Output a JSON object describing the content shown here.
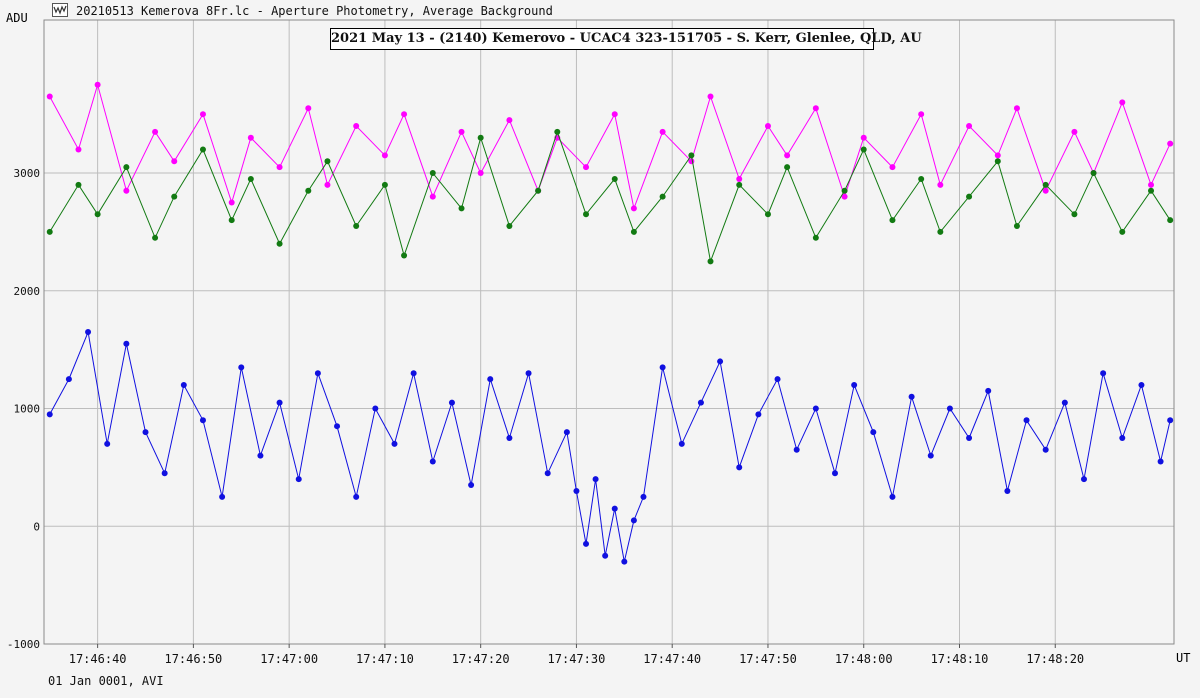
{
  "window": {
    "title": "20210513 Kemerova 8Fr.lc - Aperture Photometry, Average Background",
    "icon": "lightcurve-app-icon"
  },
  "footer": {
    "label": "01 Jan 0001, AVI"
  },
  "chart_data": {
    "type": "line",
    "title": "2021 May 13 - (2140) Kemerovo - UCAC4 323-151705 - S. Kerr, Glenlee, QLD, AU",
    "ylabel": "ADU",
    "xlabel": "UT",
    "ylim": [
      -1000,
      4300
    ],
    "xlim": [
      "17:46:34.4",
      "17:48:32.4"
    ],
    "yticks": [
      -1000,
      0,
      1000,
      2000,
      3000
    ],
    "ytick_labels": [
      "-1000",
      "0",
      "1000",
      "2000",
      "3000"
    ],
    "xticks": [
      "17:46:40",
      "17:46:50",
      "17:47:00",
      "17:47:10",
      "17:47:20",
      "17:47:30",
      "17:47:40",
      "17:47:50",
      "17:48:00",
      "17:48:10",
      "17:48:20"
    ],
    "grid": true,
    "colors": {
      "target": "#1010e0",
      "comp1": "#ff00ff",
      "comp2": "#127a12",
      "grid": "#bdbdbd"
    },
    "series": [
      {
        "key": "comp1",
        "color": "#ff00ff",
        "x": [
          "17:46:35",
          "17:46:38",
          "17:46:40",
          "17:46:43",
          "17:46:46",
          "17:46:48",
          "17:46:51",
          "17:46:54",
          "17:46:56",
          "17:46:59",
          "17:47:02",
          "17:47:04",
          "17:47:07",
          "17:47:10",
          "17:47:12",
          "17:47:15",
          "17:47:18",
          "17:47:20",
          "17:47:23",
          "17:47:26",
          "17:47:28",
          "17:47:31",
          "17:47:34",
          "17:47:36",
          "17:47:39",
          "17:47:42",
          "17:47:44",
          "17:47:47",
          "17:47:50",
          "17:47:52",
          "17:47:55",
          "17:47:58",
          "17:48:00",
          "17:48:03",
          "17:48:06",
          "17:48:08",
          "17:48:11",
          "17:48:14",
          "17:48:16",
          "17:48:19",
          "17:48:22",
          "17:48:24",
          "17:48:27",
          "17:48:30",
          "17:48:32"
        ],
        "y": [
          3650,
          3200,
          3750,
          2850,
          3350,
          3100,
          3500,
          2750,
          3300,
          3050,
          3550,
          2900,
          3400,
          3150,
          3500,
          2800,
          3350,
          3000,
          3450,
          2850,
          3300,
          3050,
          3500,
          2700,
          3350,
          3100,
          3650,
          2950,
          3400,
          3150,
          3550,
          2800,
          3300,
          3050,
          3500,
          2900,
          3400,
          3150,
          3550,
          2850,
          3350,
          3000,
          3600,
          2900,
          3250
        ]
      },
      {
        "key": "comp2",
        "color": "#127a12",
        "x": [
          "17:46:35",
          "17:46:38",
          "17:46:40",
          "17:46:43",
          "17:46:46",
          "17:46:48",
          "17:46:51",
          "17:46:54",
          "17:46:56",
          "17:46:59",
          "17:47:02",
          "17:47:04",
          "17:47:07",
          "17:47:10",
          "17:47:12",
          "17:47:15",
          "17:47:18",
          "17:47:20",
          "17:47:23",
          "17:47:26",
          "17:47:28",
          "17:47:31",
          "17:47:34",
          "17:47:36",
          "17:47:39",
          "17:47:42",
          "17:47:44",
          "17:47:47",
          "17:47:50",
          "17:47:52",
          "17:47:55",
          "17:47:58",
          "17:48:00",
          "17:48:03",
          "17:48:06",
          "17:48:08",
          "17:48:11",
          "17:48:14",
          "17:48:16",
          "17:48:19",
          "17:48:22",
          "17:48:24",
          "17:48:27",
          "17:48:30",
          "17:48:32"
        ],
        "y": [
          2500,
          2900,
          2650,
          3050,
          2450,
          2800,
          3200,
          2600,
          2950,
          2400,
          2850,
          3100,
          2550,
          2900,
          2300,
          3000,
          2700,
          3300,
          2550,
          2850,
          3350,
          2650,
          2950,
          2500,
          2800,
          3150,
          2250,
          2900,
          2650,
          3050,
          2450,
          2850,
          3200,
          2600,
          2950,
          2500,
          2800,
          3100,
          2550,
          2900,
          2650,
          3000,
          2500,
          2850,
          2600
        ]
      },
      {
        "key": "target",
        "color": "#1010e0",
        "x": [
          "17:46:35",
          "17:46:37",
          "17:46:39",
          "17:46:41",
          "17:46:43",
          "17:46:45",
          "17:46:47",
          "17:46:49",
          "17:46:51",
          "17:46:53",
          "17:46:55",
          "17:46:57",
          "17:46:59",
          "17:47:01",
          "17:47:03",
          "17:47:05",
          "17:47:07",
          "17:47:09",
          "17:47:11",
          "17:47:13",
          "17:47:15",
          "17:47:17",
          "17:47:19",
          "17:47:21",
          "17:47:23",
          "17:47:25",
          "17:47:27",
          "17:47:29",
          "17:47:30",
          "17:47:31",
          "17:47:32",
          "17:47:33",
          "17:47:34",
          "17:47:35",
          "17:47:36",
          "17:47:37",
          "17:47:39",
          "17:47:41",
          "17:47:43",
          "17:47:45",
          "17:47:47",
          "17:47:49",
          "17:47:51",
          "17:47:53",
          "17:47:55",
          "17:47:57",
          "17:47:59",
          "17:48:01",
          "17:48:03",
          "17:48:05",
          "17:48:07",
          "17:48:09",
          "17:48:11",
          "17:48:13",
          "17:48:15",
          "17:48:17",
          "17:48:19",
          "17:48:21",
          "17:48:23",
          "17:48:25",
          "17:48:27",
          "17:48:29",
          "17:48:31",
          "17:48:32"
        ],
        "y": [
          950,
          1250,
          1650,
          700,
          1550,
          800,
          450,
          1200,
          900,
          250,
          1350,
          600,
          1050,
          400,
          1300,
          850,
          250,
          1000,
          700,
          1300,
          550,
          1050,
          350,
          1250,
          750,
          1300,
          450,
          800,
          300,
          -150,
          400,
          -250,
          150,
          -300,
          50,
          250,
          1350,
          700,
          1050,
          1400,
          500,
          950,
          1250,
          650,
          1000,
          450,
          1200,
          800,
          250,
          1100,
          600,
          1000,
          750,
          1150,
          300,
          900,
          650,
          1050,
          400,
          1300,
          750,
          1200,
          550,
          900
        ]
      }
    ]
  }
}
